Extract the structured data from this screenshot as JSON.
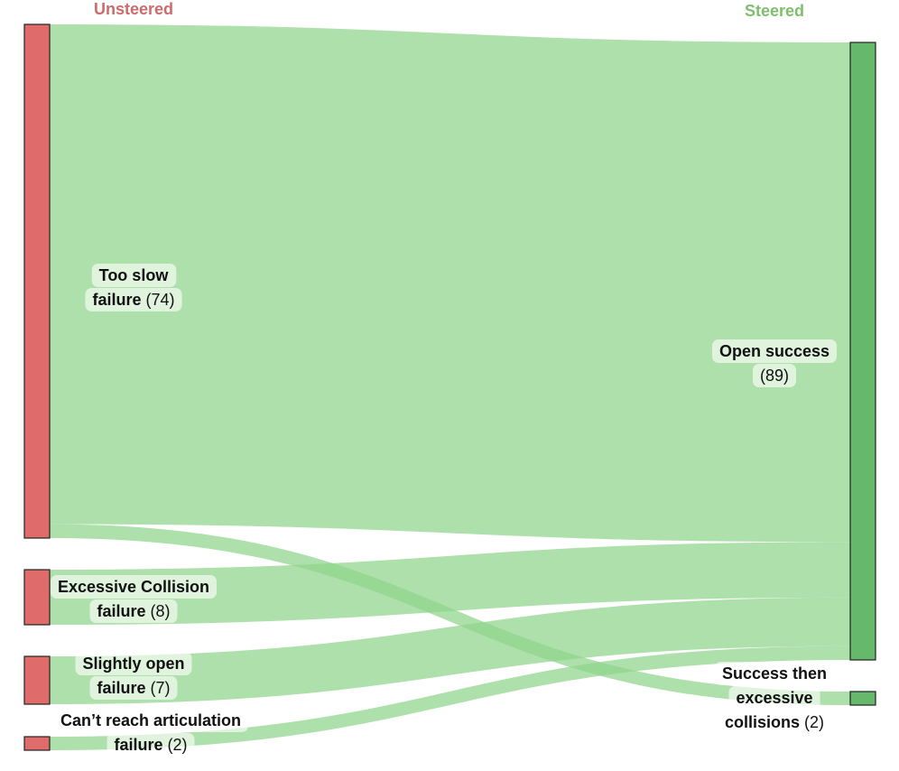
{
  "chart_data": {
    "type": "sankey",
    "columns": [
      {
        "name": "Unsteered",
        "color": "#cc6b6b"
      },
      {
        "name": "Steered",
        "color": "#7fbf6b"
      }
    ],
    "left_nodes": [
      {
        "id": "too_slow",
        "label_lines": [
          {
            "bold": "Too slow",
            "rest": ""
          },
          {
            "bold": "failure",
            "rest": " (74)"
          }
        ],
        "value": 74,
        "color": "#e06b6b"
      },
      {
        "id": "collision",
        "label_lines": [
          {
            "bold": "Excessive Collision",
            "rest": ""
          },
          {
            "bold": "failure",
            "rest": " (8)"
          }
        ],
        "value": 8,
        "color": "#e06b6b"
      },
      {
        "id": "slightly_open",
        "label_lines": [
          {
            "bold": "Slightly open",
            "rest": ""
          },
          {
            "bold": "failure",
            "rest": " (7)"
          }
        ],
        "value": 7,
        "color": "#e06b6b"
      },
      {
        "id": "cant_reach",
        "label_lines": [
          {
            "bold": "Can’t reach articulation",
            "rest": ""
          },
          {
            "bold": "failure",
            "rest": " (2)"
          }
        ],
        "value": 2,
        "color": "#e06b6b"
      }
    ],
    "right_nodes": [
      {
        "id": "open_success",
        "label_lines": [
          {
            "bold": "Open success",
            "rest": ""
          },
          {
            "bold": "",
            "rest": "(89)"
          }
        ],
        "value": 89,
        "color": "#66b86b"
      },
      {
        "id": "success_collisions",
        "label_lines": [
          {
            "bold": "Success then",
            "rest": ""
          },
          {
            "bold": "excessive",
            "rest": ""
          },
          {
            "bold": "collisions",
            "rest": " (2)"
          }
        ],
        "value": 2,
        "color": "#66b86b"
      }
    ],
    "flows": [
      {
        "source": "too_slow",
        "target": "open_success",
        "value": 72
      },
      {
        "source": "too_slow",
        "target": "success_collisions",
        "value": 2
      },
      {
        "source": "collision",
        "target": "open_success",
        "value": 8
      },
      {
        "source": "slightly_open",
        "target": "open_success",
        "value": 7
      },
      {
        "source": "cant_reach",
        "target": "open_success",
        "value": 2
      }
    ],
    "flow_color": "#8fd48a"
  }
}
